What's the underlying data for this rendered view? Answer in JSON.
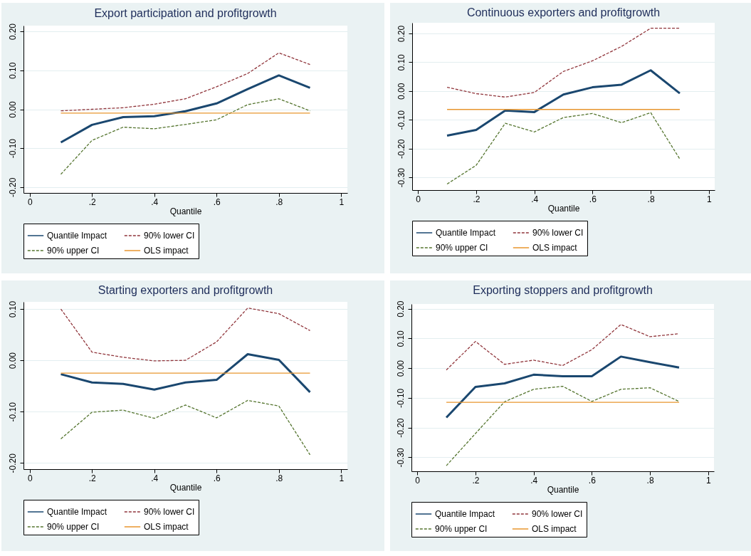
{
  "chart_data": [
    {
      "type": "line",
      "title": "Export participation and profitgrowth",
      "xlabel": "Quantile",
      "x": [
        0.1,
        0.2,
        0.3,
        0.4,
        0.5,
        0.6,
        0.7,
        0.8,
        0.9
      ],
      "series": [
        {
          "name": "Quantile Impact",
          "color": "#1a476f",
          "line_style": "solid",
          "values": [
            -0.085,
            -0.04,
            -0.02,
            -0.018,
            -0.005,
            0.015,
            0.052,
            0.087,
            0.055
          ]
        },
        {
          "name": "90% lower CI",
          "color": "#90353b",
          "line_style": "dashed",
          "values": [
            -0.004,
            0,
            0.004,
            0.013,
            0.027,
            0.058,
            0.092,
            0.145,
            0.115
          ]
        },
        {
          "name": "90% upper CI",
          "color": "#55752f",
          "line_style": "dashed",
          "values": [
            -0.167,
            -0.08,
            -0.046,
            -0.05,
            -0.039,
            -0.027,
            0.012,
            0.027,
            -0.004
          ]
        },
        {
          "name": "OLS impact",
          "color": "#e8962e",
          "line_style": "solid",
          "values": [
            -0.01,
            -0.01,
            -0.01,
            -0.01,
            -0.01,
            -0.01,
            -0.01,
            -0.01,
            -0.01
          ]
        }
      ],
      "xlim": [
        -0.02,
        1.02
      ],
      "xticks": [
        {
          "value": 0,
          "label": "0"
        },
        {
          "value": 0.2,
          "label": ".2"
        },
        {
          "value": 0.4,
          "label": ".4"
        },
        {
          "value": 0.6,
          "label": ".6"
        },
        {
          "value": 0.8,
          "label": ".8"
        },
        {
          "value": 1,
          "label": "1"
        }
      ],
      "ylim": [
        -0.215,
        0.215
      ],
      "yticks": [
        {
          "value": -0.2,
          "label": "-0.20"
        },
        {
          "value": -0.1,
          "label": "-0.10"
        },
        {
          "value": 0,
          "label": "0.00"
        },
        {
          "value": 0.1,
          "label": "0.10"
        },
        {
          "value": 0.2,
          "label": "0.20"
        }
      ],
      "grid": "y",
      "legend": "bottom"
    },
    {
      "type": "line",
      "title": "Continuous exporters and profitgrowth",
      "xlabel": "Quantile",
      "x": [
        0.1,
        0.2,
        0.3,
        0.4,
        0.5,
        0.6,
        0.7,
        0.8,
        0.9
      ],
      "series": [
        {
          "name": "Quantile Impact",
          "color": "#1a476f",
          "line_style": "solid",
          "values": [
            -0.155,
            -0.135,
            -0.068,
            -0.073,
            -0.012,
            0.013,
            0.022,
            0.072,
            -0.008
          ]
        },
        {
          "name": "90% lower CI",
          "color": "#90353b",
          "line_style": "dashed",
          "values": [
            0.013,
            -0.009,
            -0.021,
            -0.005,
            0.068,
            0.105,
            0.155,
            0.218,
            0.218
          ]
        },
        {
          "name": "90% upper CI",
          "color": "#55752f",
          "line_style": "dashed",
          "values": [
            -0.323,
            -0.258,
            -0.112,
            -0.142,
            -0.092,
            -0.078,
            -0.11,
            -0.075,
            -0.236
          ]
        },
        {
          "name": "OLS impact",
          "color": "#e8962e",
          "line_style": "solid",
          "values": [
            -0.064,
            -0.064,
            -0.064,
            -0.064,
            -0.064,
            -0.064,
            -0.064,
            -0.064,
            -0.064
          ]
        }
      ],
      "xlim": [
        -0.02,
        1.02
      ],
      "xticks": [
        {
          "value": 0,
          "label": "0"
        },
        {
          "value": 0.2,
          "label": ".2"
        },
        {
          "value": 0.4,
          "label": ".4"
        },
        {
          "value": 0.6,
          "label": ".6"
        },
        {
          "value": 0.8,
          "label": ".8"
        },
        {
          "value": 1,
          "label": "1"
        }
      ],
      "ylim": [
        -0.344,
        0.237
      ],
      "yticks": [
        {
          "value": -0.3,
          "label": "-0.30"
        },
        {
          "value": -0.2,
          "label": "-0.20"
        },
        {
          "value": -0.1,
          "label": "-0.10"
        },
        {
          "value": 0,
          "label": "0.00"
        },
        {
          "value": 0.1,
          "label": "0.10"
        },
        {
          "value": 0.2,
          "label": "0.20"
        }
      ],
      "grid": "y",
      "legend": "bottom"
    },
    {
      "type": "line",
      "title": "Starting exporters and profitgrowth",
      "xlabel": "Quantile",
      "x": [
        0.1,
        0.2,
        0.3,
        0.4,
        0.5,
        0.6,
        0.7,
        0.8,
        0.9
      ],
      "series": [
        {
          "name": "Quantile Impact",
          "color": "#1a476f",
          "line_style": "solid",
          "values": [
            -0.027,
            -0.043,
            -0.046,
            -0.057,
            -0.043,
            -0.038,
            0.012,
            0.001,
            -0.062
          ]
        },
        {
          "name": "90% lower CI",
          "color": "#90353b",
          "line_style": "dashed",
          "values": [
            0.1,
            0.016,
            0.006,
            -0.001,
            0,
            0.036,
            0.102,
            0.091,
            0.058
          ]
        },
        {
          "name": "90% upper CI",
          "color": "#55752f",
          "line_style": "dashed",
          "values": [
            -0.153,
            -0.101,
            -0.097,
            -0.113,
            -0.087,
            -0.112,
            -0.078,
            -0.089,
            -0.184
          ]
        },
        {
          "name": "OLS impact",
          "color": "#e8962e",
          "line_style": "solid",
          "values": [
            -0.025,
            -0.025,
            -0.025,
            -0.025,
            -0.025,
            -0.025,
            -0.025,
            -0.025,
            -0.025
          ]
        }
      ],
      "xlim": [
        -0.02,
        1.02
      ],
      "xticks": [
        {
          "value": 0,
          "label": "0"
        },
        {
          "value": 0.2,
          "label": ".2"
        },
        {
          "value": 0.4,
          "label": ".4"
        },
        {
          "value": 0.6,
          "label": ".6"
        },
        {
          "value": 0.8,
          "label": ".8"
        },
        {
          "value": 1,
          "label": "1"
        }
      ],
      "ylim": [
        -0.212,
        0.114
      ],
      "yticks": [
        {
          "value": -0.2,
          "label": "-0.20"
        },
        {
          "value": -0.1,
          "label": "-0.10"
        },
        {
          "value": 0,
          "label": "0.00"
        },
        {
          "value": 0.1,
          "label": "0.10"
        }
      ],
      "grid": "y",
      "legend": "bottom"
    },
    {
      "type": "line",
      "title": "Exporting stoppers and profitgrowth",
      "xlabel": "Quantile",
      "x": [
        0.1,
        0.2,
        0.3,
        0.4,
        0.5,
        0.6,
        0.7,
        0.8,
        0.9
      ],
      "series": [
        {
          "name": "Quantile Impact",
          "color": "#1a476f",
          "line_style": "solid",
          "values": [
            -0.166,
            -0.063,
            -0.051,
            -0.022,
            -0.027,
            -0.027,
            0.039,
            0.02,
            0.002
          ]
        },
        {
          "name": "90% lower CI",
          "color": "#90353b",
          "line_style": "dashed",
          "values": [
            -0.006,
            0.09,
            0.013,
            0.027,
            0.009,
            0.062,
            0.147,
            0.106,
            0.116
          ]
        },
        {
          "name": "90% upper CI",
          "color": "#55752f",
          "line_style": "dashed",
          "values": [
            -0.328,
            -0.22,
            -0.113,
            -0.071,
            -0.061,
            -0.112,
            -0.071,
            -0.066,
            -0.112
          ]
        },
        {
          "name": "OLS impact",
          "color": "#e8962e",
          "line_style": "solid",
          "values": [
            -0.115,
            -0.115,
            -0.115,
            -0.115,
            -0.115,
            -0.115,
            -0.115,
            -0.115,
            -0.115
          ]
        }
      ],
      "xlim": [
        -0.02,
        1.02
      ],
      "xticks": [
        {
          "value": 0,
          "label": "0"
        },
        {
          "value": 0.2,
          "label": ".2"
        },
        {
          "value": 0.4,
          "label": ".4"
        },
        {
          "value": 0.6,
          "label": ".6"
        },
        {
          "value": 0.8,
          "label": ".8"
        },
        {
          "value": 1,
          "label": "1"
        }
      ],
      "ylim": [
        -0.347,
        0.216
      ],
      "yticks": [
        {
          "value": -0.3,
          "label": "-0.30"
        },
        {
          "value": -0.2,
          "label": "-0.20"
        },
        {
          "value": -0.1,
          "label": "-0.10"
        },
        {
          "value": 0,
          "label": "0.00"
        },
        {
          "value": 0.1,
          "label": "0.10"
        },
        {
          "value": 0.2,
          "label": "0.20"
        }
      ],
      "grid": "y",
      "legend": "bottom"
    }
  ]
}
